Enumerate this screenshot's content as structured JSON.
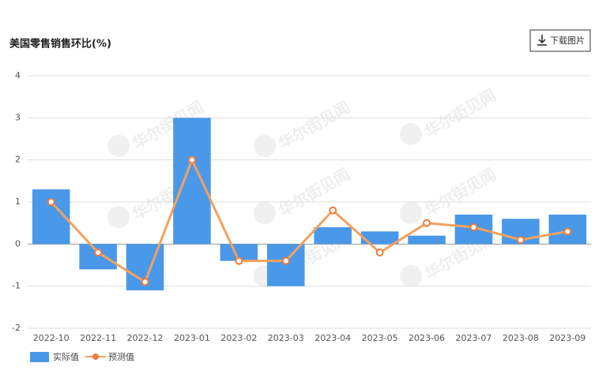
{
  "chart_data": {
    "type": "bar",
    "title": "美国零售销售环比(%)",
    "download_button": "下载图片",
    "watermark": "华尔街见闻",
    "categories": [
      "2022-10",
      "2022-11",
      "2022-12",
      "2023-01",
      "2023-02",
      "2023-03",
      "2023-04",
      "2023-05",
      "2023-06",
      "2023-07",
      "2023-08",
      "2023-09"
    ],
    "series": [
      {
        "name": "实际值",
        "type": "bar",
        "color": "#4a98e9",
        "values": [
          1.3,
          -0.6,
          -1.1,
          3.0,
          -0.4,
          -1.0,
          0.4,
          0.3,
          0.2,
          0.7,
          0.6,
          0.7
        ]
      },
      {
        "name": "预测值",
        "type": "line",
        "color": "#f5a05c",
        "values": [
          1.0,
          -0.2,
          -0.9,
          2.0,
          -0.4,
          -0.4,
          0.8,
          -0.2,
          0.5,
          0.4,
          0.1,
          0.3
        ]
      }
    ],
    "ylim": [
      -2,
      4
    ],
    "yticks": [
      -2,
      -1,
      0,
      1,
      2,
      3,
      4
    ],
    "grid": true,
    "legend": "bottom-left"
  }
}
